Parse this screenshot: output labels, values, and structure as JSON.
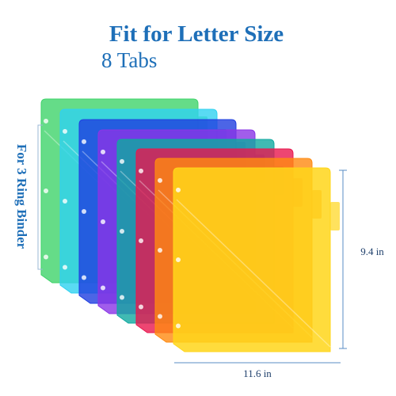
{
  "header": {
    "title": "Fit for Letter Size",
    "subtitle": "8 Tabs"
  },
  "side_label": "For 3 Ring Binder",
  "dimensions": {
    "height": "9.4 in",
    "width": "11.6 in"
  }
}
